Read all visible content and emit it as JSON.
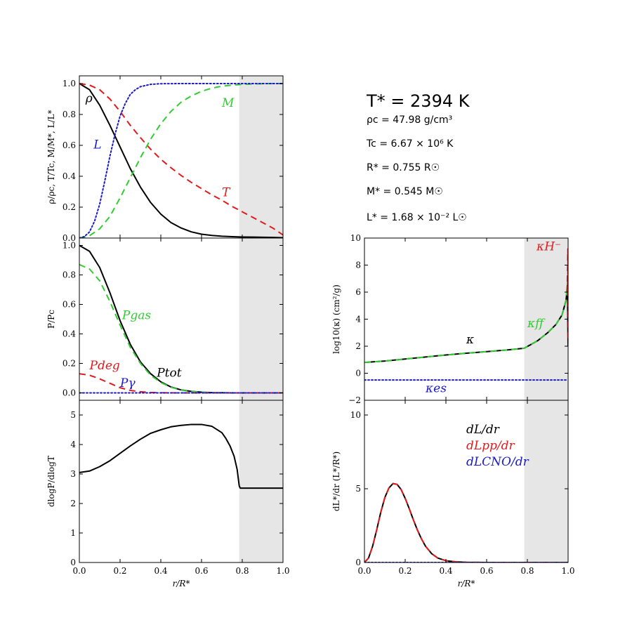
{
  "colors": {
    "black": "#000000",
    "red": "#e31a1c",
    "green": "#33cc33",
    "blue": "#1a1acc",
    "shade": "#e6e6e6"
  },
  "info": {
    "T_star": "T* = 2394 K",
    "rho_c": "ρc = 47.98 g/cm³",
    "T_c": "Tc = 6.67 × 10⁶ K",
    "R_star": "R* = 0.755 R☉",
    "M_star": "M* = 0.545 M☉",
    "L_star": "L* = 1.68 × 10⁻² L☉"
  },
  "chart_data": [
    {
      "id": "structure",
      "type": "line",
      "ylabel": "ρ/ρc, T/Tc, M/M*, L/L*",
      "xlim": [
        0,
        1
      ],
      "ylim": [
        0,
        1.05
      ],
      "yticks": [
        0.0,
        0.2,
        0.4,
        0.6,
        0.8,
        1.0
      ],
      "ytick_labels": [
        "0.0",
        "0.2",
        "0.4",
        "0.6",
        "0.8",
        "1.0"
      ],
      "shaded_region": [
        0.785,
        1.0
      ],
      "series": [
        {
          "name": "ρ",
          "color": "black",
          "style": "solid",
          "x": [
            0,
            0.05,
            0.1,
            0.15,
            0.2,
            0.25,
            0.3,
            0.35,
            0.4,
            0.45,
            0.5,
            0.55,
            0.6,
            0.65,
            0.7,
            0.75,
            0.8,
            0.85,
            0.9,
            0.95,
            1.0
          ],
          "y": [
            1.0,
            0.96,
            0.86,
            0.73,
            0.59,
            0.45,
            0.33,
            0.23,
            0.155,
            0.1,
            0.065,
            0.04,
            0.025,
            0.017,
            0.012,
            0.009,
            0.007,
            0.006,
            0.005,
            0.004,
            0.002
          ]
        },
        {
          "name": "T",
          "color": "red",
          "style": "dashed",
          "x": [
            0,
            0.05,
            0.1,
            0.15,
            0.2,
            0.25,
            0.3,
            0.35,
            0.4,
            0.45,
            0.5,
            0.55,
            0.6,
            0.65,
            0.7,
            0.75,
            0.8,
            0.85,
            0.9,
            0.95,
            1.0
          ],
          "y": [
            1.0,
            0.99,
            0.96,
            0.9,
            0.82,
            0.73,
            0.65,
            0.575,
            0.51,
            0.455,
            0.405,
            0.36,
            0.32,
            0.28,
            0.245,
            0.205,
            0.17,
            0.135,
            0.1,
            0.065,
            0.02
          ]
        },
        {
          "name": "M",
          "color": "green",
          "style": "dashed",
          "x": [
            0,
            0.05,
            0.1,
            0.15,
            0.2,
            0.25,
            0.3,
            0.35,
            0.4,
            0.45,
            0.5,
            0.55,
            0.6,
            0.65,
            0.7,
            0.75,
            0.8,
            0.85,
            0.9,
            0.95,
            1.0
          ],
          "y": [
            0.0,
            0.015,
            0.06,
            0.14,
            0.26,
            0.39,
            0.52,
            0.64,
            0.74,
            0.82,
            0.88,
            0.92,
            0.95,
            0.97,
            0.983,
            0.99,
            0.995,
            0.997,
            0.999,
            1.0,
            1.0
          ]
        },
        {
          "name": "L",
          "color": "blue",
          "style": "dotted",
          "x": [
            0,
            0.025,
            0.05,
            0.075,
            0.1,
            0.125,
            0.15,
            0.175,
            0.2,
            0.225,
            0.25,
            0.275,
            0.3,
            0.35,
            0.4,
            0.5,
            0.6,
            0.7,
            0.8,
            0.9,
            1.0
          ],
          "y": [
            0.0,
            0.01,
            0.04,
            0.11,
            0.22,
            0.37,
            0.53,
            0.67,
            0.79,
            0.87,
            0.93,
            0.96,
            0.98,
            0.995,
            0.999,
            1.0,
            1.0,
            1.0,
            1.0,
            1.0,
            1.0
          ]
        }
      ],
      "annotations": [
        {
          "text": "ρ",
          "x": 0.03,
          "y": 0.88,
          "color": "black"
        },
        {
          "text": "L",
          "x": 0.07,
          "y": 0.58,
          "color": "blue"
        },
        {
          "text": "M",
          "x": 0.7,
          "y": 0.85,
          "color": "green"
        },
        {
          "text": "T",
          "x": 0.7,
          "y": 0.27,
          "color": "red"
        }
      ]
    },
    {
      "id": "pressure",
      "type": "line",
      "ylabel": "P/Pc",
      "xlim": [
        0,
        1
      ],
      "ylim": [
        -0.05,
        1.05
      ],
      "yticks": [
        0.0,
        0.2,
        0.4,
        0.6,
        0.8,
        1.0
      ],
      "ytick_labels": [
        "0.0",
        "0.2",
        "0.4",
        "0.6",
        "0.8",
        "1.0"
      ],
      "shaded_region": [
        0.785,
        1.0
      ],
      "series": [
        {
          "name": "Ptot",
          "color": "black",
          "style": "solid",
          "x": [
            0,
            0.05,
            0.1,
            0.15,
            0.2,
            0.25,
            0.3,
            0.35,
            0.4,
            0.45,
            0.5,
            0.55,
            0.6,
            0.65,
            0.7,
            0.75,
            0.8,
            0.9,
            1.0
          ],
          "y": [
            1.0,
            0.96,
            0.85,
            0.68,
            0.49,
            0.33,
            0.21,
            0.13,
            0.075,
            0.04,
            0.02,
            0.01,
            0.005,
            0.002,
            0.001,
            0.0,
            0.0,
            0.0,
            0.0
          ]
        },
        {
          "name": "Pgas",
          "color": "green",
          "style": "dashed",
          "x": [
            0,
            0.05,
            0.1,
            0.15,
            0.2,
            0.25,
            0.3,
            0.35,
            0.4,
            0.45,
            0.5,
            0.55,
            0.6,
            0.65,
            0.7,
            0.75,
            0.8,
            0.9,
            1.0
          ],
          "y": [
            0.87,
            0.84,
            0.76,
            0.62,
            0.46,
            0.31,
            0.2,
            0.12,
            0.07,
            0.038,
            0.019,
            0.009,
            0.004,
            0.002,
            0.001,
            0.0,
            0.0,
            0.0,
            0.0
          ]
        },
        {
          "name": "Pdeg",
          "color": "red",
          "style": "dashed",
          "x": [
            0,
            0.05,
            0.1,
            0.15,
            0.2,
            0.25,
            0.3,
            0.35,
            0.4,
            0.5,
            0.6,
            0.8,
            1.0
          ],
          "y": [
            0.13,
            0.12,
            0.095,
            0.065,
            0.035,
            0.017,
            0.008,
            0.003,
            0.001,
            0.0,
            0.0,
            0.0,
            0.0
          ]
        },
        {
          "name": "Pγ",
          "color": "blue",
          "style": "dotted",
          "x": [
            0,
            0.2,
            0.4,
            0.6,
            0.8,
            1.0
          ],
          "y": [
            0.0,
            0.0,
            0.0,
            0.0,
            0.0,
            0.0
          ]
        }
      ],
      "annotations": [
        {
          "text": "Pgas",
          "x": 0.21,
          "y": 0.5,
          "color": "green"
        },
        {
          "text": "Pdeg",
          "x": 0.05,
          "y": 0.16,
          "color": "red"
        },
        {
          "text": "Ptot",
          "x": 0.38,
          "y": 0.11,
          "color": "black"
        },
        {
          "text": "Pγ",
          "x": 0.2,
          "y": 0.04,
          "color": "blue"
        }
      ]
    },
    {
      "id": "dlogP",
      "type": "line",
      "xlabel": "r/R*",
      "ylabel": "dlogP/dlogT",
      "xlim": [
        0,
        1
      ],
      "ylim": [
        0,
        5.5
      ],
      "yticks": [
        0,
        1,
        2,
        3,
        4,
        5
      ],
      "ytick_labels": [
        "0",
        "1",
        "2",
        "3",
        "4",
        "5"
      ],
      "xticks": [
        0,
        0.2,
        0.4,
        0.6,
        0.8,
        1.0
      ],
      "xtick_labels": [
        "0.0",
        "0.2",
        "0.4",
        "0.6",
        "0.8",
        "1.0"
      ],
      "shaded_region": [
        0.785,
        1.0
      ],
      "series": [
        {
          "name": "dlogP/dlogT",
          "color": "black",
          "style": "solid",
          "x": [
            0,
            0.05,
            0.1,
            0.15,
            0.2,
            0.25,
            0.3,
            0.35,
            0.4,
            0.45,
            0.5,
            0.55,
            0.6,
            0.65,
            0.7,
            0.72,
            0.74,
            0.76,
            0.775,
            0.785,
            0.79,
            0.8,
            0.9,
            1.0
          ],
          "y": [
            3.05,
            3.1,
            3.25,
            3.45,
            3.7,
            3.95,
            4.18,
            4.38,
            4.5,
            4.6,
            4.65,
            4.68,
            4.68,
            4.62,
            4.4,
            4.2,
            3.95,
            3.6,
            3.15,
            2.6,
            2.52,
            2.52,
            2.52,
            2.52
          ]
        }
      ],
      "annotations": []
    },
    {
      "id": "opacity",
      "type": "line",
      "ylabel": "log10(κ) (cm²/g)",
      "xlim": [
        0,
        1
      ],
      "ylim": [
        -2,
        10
      ],
      "yticks": [
        -2,
        0,
        2,
        4,
        6,
        8,
        10
      ],
      "ytick_labels": [
        "−2",
        "0",
        "2",
        "4",
        "6",
        "8",
        "10"
      ],
      "shaded_region": [
        0.785,
        1.0
      ],
      "series": [
        {
          "name": "κ",
          "color": "black",
          "style": "solid",
          "x": [
            0,
            0.1,
            0.2,
            0.3,
            0.4,
            0.5,
            0.6,
            0.7,
            0.785,
            0.85,
            0.9,
            0.94,
            0.97,
            0.99,
            0.997,
            1.0
          ],
          "y": [
            0.8,
            0.9,
            1.05,
            1.2,
            1.35,
            1.48,
            1.6,
            1.72,
            1.85,
            2.4,
            3.0,
            3.6,
            4.3,
            5.4,
            6.5,
            2.0
          ]
        },
        {
          "name": "κff",
          "color": "green",
          "style": "dashed",
          "x": [
            0,
            0.1,
            0.2,
            0.3,
            0.4,
            0.5,
            0.6,
            0.7,
            0.785,
            0.85,
            0.9,
            0.94,
            0.97,
            0.99,
            0.997,
            1.0
          ],
          "y": [
            0.8,
            0.9,
            1.05,
            1.2,
            1.35,
            1.48,
            1.6,
            1.72,
            1.85,
            2.4,
            3.0,
            3.6,
            4.3,
            5.4,
            6.8,
            8.0
          ]
        },
        {
          "name": "κH⁻",
          "color": "red",
          "style": "dashed",
          "x": [
            0.995,
            0.997,
            0.998,
            0.999,
            1.0
          ],
          "y": [
            6.0,
            7.5,
            8.5,
            9.2,
            2.3
          ]
        },
        {
          "name": "κes",
          "color": "blue",
          "style": "dotted",
          "x": [
            0,
            0.2,
            0.4,
            0.6,
            0.8,
            1.0
          ],
          "y": [
            -0.5,
            -0.5,
            -0.5,
            -0.5,
            -0.5,
            -0.5
          ]
        }
      ],
      "annotations": [
        {
          "text": "κH⁻",
          "x": 0.845,
          "y": 9.1,
          "color": "red"
        },
        {
          "text": "κff",
          "x": 0.8,
          "y": 3.4,
          "color": "green"
        },
        {
          "text": "κ",
          "x": 0.5,
          "y": 2.2,
          "color": "black"
        },
        {
          "text": "κes",
          "x": 0.3,
          "y": -1.4,
          "color": "blue"
        }
      ]
    },
    {
      "id": "dLdr",
      "type": "line",
      "xlabel": "r/R*",
      "ylabel": "dL*/dr (L*/R*)",
      "xlim": [
        0,
        1
      ],
      "ylim": [
        0,
        11
      ],
      "yticks": [
        0,
        5,
        10
      ],
      "ytick_labels": [
        "0",
        "5",
        "10"
      ],
      "xticks": [
        0,
        0.2,
        0.4,
        0.6,
        0.8,
        1.0
      ],
      "xtick_labels": [
        "0.0",
        "0.2",
        "0.4",
        "0.6",
        "0.8",
        "1.0"
      ],
      "shaded_region": [
        0.785,
        1.0
      ],
      "legend": [
        "dL/dr",
        "dLpp/dr",
        "dLCNO/dr"
      ],
      "legend_position": "upper-right",
      "series": [
        {
          "name": "dL/dr",
          "color": "black",
          "style": "solid",
          "x": [
            0,
            0.02,
            0.04,
            0.06,
            0.08,
            0.1,
            0.12,
            0.14,
            0.16,
            0.18,
            0.2,
            0.22,
            0.24,
            0.26,
            0.28,
            0.3,
            0.33,
            0.36,
            0.4,
            0.45,
            0.5,
            0.6,
            0.7,
            0.8,
            1.0
          ],
          "y": [
            0.0,
            0.3,
            1.1,
            2.2,
            3.4,
            4.4,
            5.05,
            5.35,
            5.3,
            4.95,
            4.35,
            3.65,
            2.9,
            2.2,
            1.6,
            1.1,
            0.6,
            0.3,
            0.12,
            0.04,
            0.01,
            0.0,
            0.0,
            0.0,
            0.0
          ]
        },
        {
          "name": "dLpp/dr",
          "color": "red",
          "style": "dashed",
          "x": [
            0,
            0.02,
            0.04,
            0.06,
            0.08,
            0.1,
            0.12,
            0.14,
            0.16,
            0.18,
            0.2,
            0.22,
            0.24,
            0.26,
            0.28,
            0.3,
            0.33,
            0.36,
            0.4,
            0.45,
            0.5,
            0.6,
            0.7,
            0.8,
            1.0
          ],
          "y": [
            0.0,
            0.3,
            1.1,
            2.2,
            3.4,
            4.4,
            5.05,
            5.35,
            5.3,
            4.95,
            4.35,
            3.65,
            2.9,
            2.2,
            1.6,
            1.1,
            0.6,
            0.3,
            0.12,
            0.04,
            0.01,
            0.0,
            0.0,
            0.0,
            0.0
          ]
        },
        {
          "name": "dLCNO/dr",
          "color": "blue",
          "style": "dotted",
          "x": [
            0,
            0.2,
            0.4,
            0.6,
            0.8,
            1.0
          ],
          "y": [
            0.0,
            0.0,
            0.0,
            0.0,
            0.0,
            0.0
          ]
        }
      ],
      "annotations": []
    }
  ]
}
